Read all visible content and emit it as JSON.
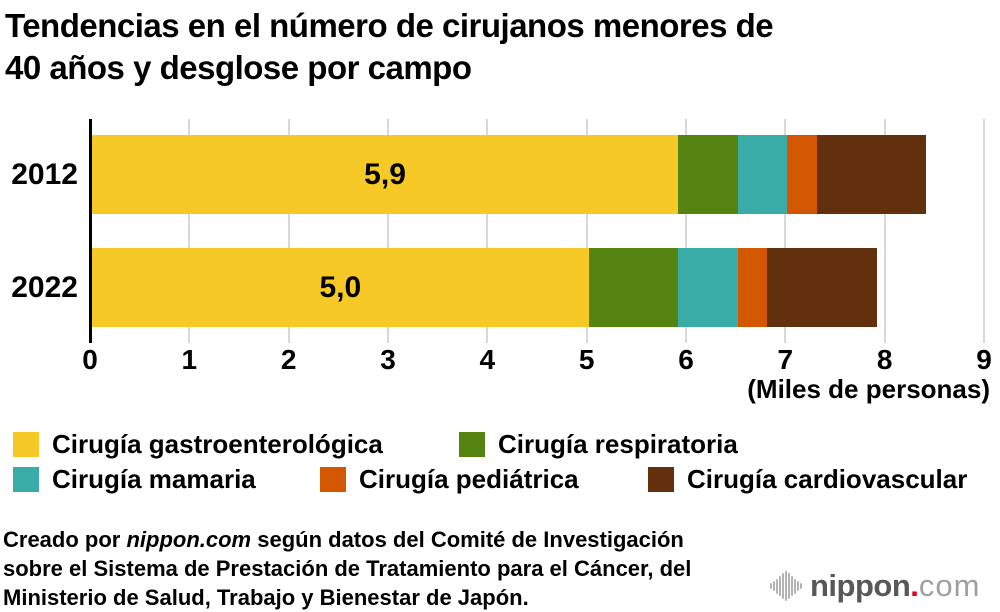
{
  "title": {
    "line1": "Tendencias en el número de cirujanos menores de",
    "line2": "40 años y desglose por campo"
  },
  "chart_data": {
    "type": "bar",
    "orientation": "horizontal",
    "stacked": true,
    "title": "Tendencias en el número de cirujanos menores de 40 años y desglose por campo",
    "categories": [
      "2012",
      "2022"
    ],
    "series": [
      {
        "name": "Cirugía gastroenterológica",
        "color": "#F7C926",
        "values": [
          5.9,
          5.0
        ]
      },
      {
        "name": "Cirugía respiratoria",
        "color": "#55830F",
        "values": [
          0.6,
          0.9
        ]
      },
      {
        "name": "Cirugía mamaria",
        "color": "#3AACA8",
        "values": [
          0.5,
          0.6
        ]
      },
      {
        "name": "Cirugía pediátrica",
        "color": "#D25700",
        "values": [
          0.3,
          0.3
        ]
      },
      {
        "name": "Cirugía cardiovascular",
        "color": "#63300D",
        "values": [
          1.1,
          1.1
        ]
      }
    ],
    "totals": [
      8.4,
      7.9
    ],
    "bar_value_labels": [
      "5,9",
      "5,0"
    ],
    "x_ticks": [
      "0",
      "1",
      "2",
      "3",
      "4",
      "5",
      "6",
      "7",
      "8",
      "9"
    ],
    "xlim": [
      0,
      9
    ],
    "x_unit_label": "(Miles de personas)",
    "grid": true,
    "grid_color": "#D8D8D8",
    "axis_color": "#000000",
    "legend_position": "bottom"
  },
  "footer": {
    "line1_prefix": "Creado por ",
    "brand": "nippon.com",
    "line1_suffix": " según datos del Comité de Investigación",
    "line2": "sobre el Sistema de Prestación de Tratamiento para el Cáncer, del",
    "line3": "Ministerio de Salud, Trabajo y Bienestar de Japón."
  },
  "logo": {
    "icon": "soundwave-bars-icon",
    "name": "nippon",
    "dot": ".",
    "tld": "com",
    "dot_color": "#E60012"
  }
}
